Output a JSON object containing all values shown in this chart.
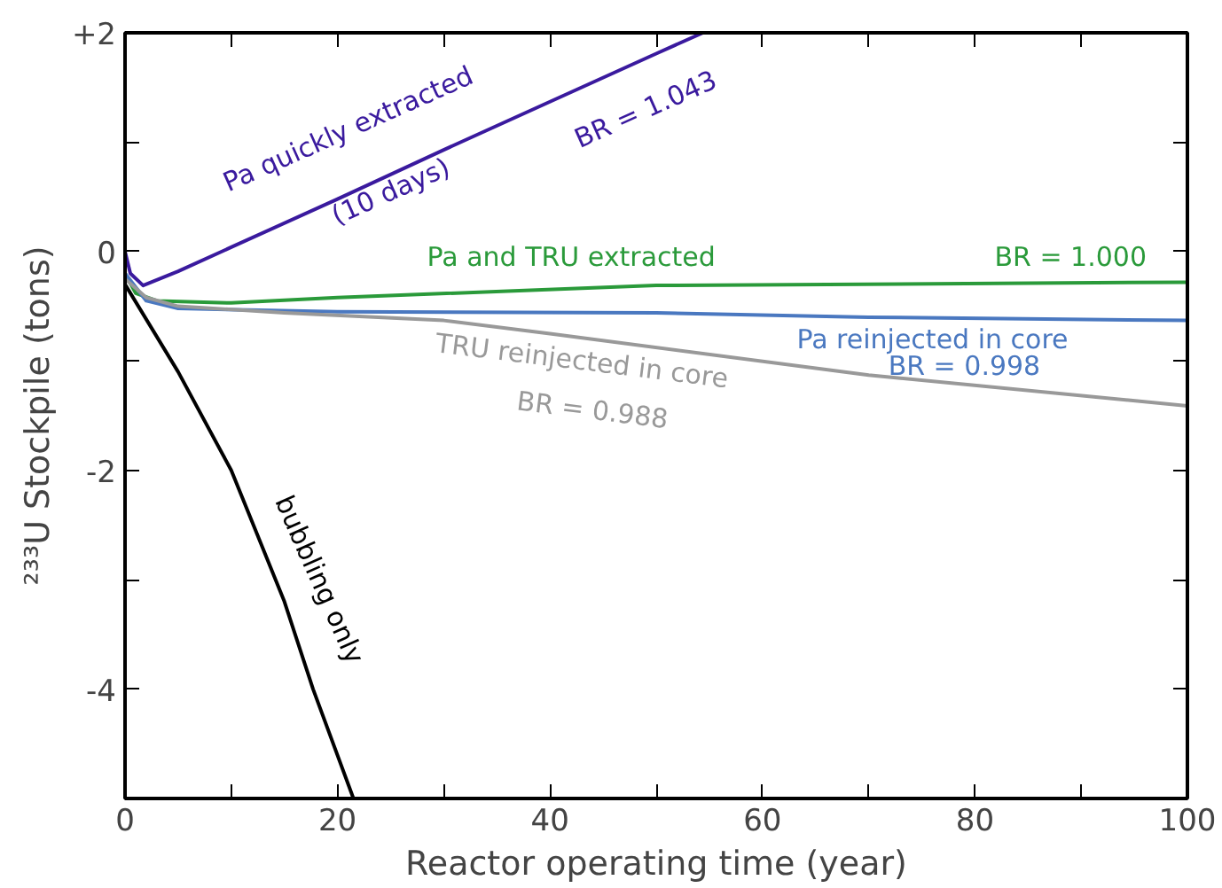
{
  "chart_data": {
    "type": "line",
    "xlabel": "Reactor operating time (year)",
    "ylabel": "²³³U Stockpile (tons)",
    "xlim": [
      0,
      100
    ],
    "ylim": [
      -5,
      2
    ],
    "xticks": [
      0,
      {
        "value": 10,
        "label": null
      },
      20,
      {
        "value": 30,
        "label": null
      },
      40,
      {
        "value": 50,
        "label": null
      },
      60,
      {
        "value": 70,
        "label": null
      },
      80,
      {
        "value": 90,
        "label": null
      },
      100
    ],
    "yticks": [
      {
        "value": -5,
        "label": null
      },
      -4,
      {
        "value": -3,
        "label": null
      },
      -2,
      {
        "value": -1,
        "label": null
      },
      0,
      {
        "value": 1,
        "label": null
      },
      {
        "value": 2,
        "label": "+2"
      }
    ],
    "grid": false,
    "line_style": "solid",
    "marker": "none",
    "series": [
      {
        "color": "#3a1a9e",
        "x": [
          0,
          0.5,
          1.7,
          5,
          10,
          20,
          30,
          40,
          50,
          54.4
        ],
        "values": [
          0,
          -0.2,
          -0.31,
          -0.18,
          0.04,
          0.48,
          0.93,
          1.37,
          1.81,
          2.0
        ]
      },
      {
        "color": "#2a9a3a",
        "x": [
          0,
          1,
          3,
          10,
          20,
          50,
          100
        ],
        "values": [
          -0.2,
          -0.38,
          -0.45,
          -0.47,
          -0.42,
          -0.31,
          -0.28
        ]
      },
      {
        "color": "#4a78c0",
        "x": [
          0,
          2,
          5,
          20,
          50,
          70,
          100
        ],
        "values": [
          -0.2,
          -0.45,
          -0.52,
          -0.55,
          -0.56,
          -0.6,
          -0.63
        ]
      },
      {
        "color": "#999999",
        "x": [
          0,
          2,
          5,
          15,
          30,
          40,
          70,
          100
        ],
        "values": [
          -0.25,
          -0.42,
          -0.5,
          -0.56,
          -0.63,
          -0.75,
          -1.13,
          -1.41
        ]
      },
      {
        "color": "#000000",
        "x": [
          0,
          5,
          10,
          15,
          17.7,
          21.5
        ],
        "values": [
          -0.3,
          -1.1,
          -2.0,
          -3.2,
          -4.0,
          -5.0
        ]
      }
    ],
    "annotations": [
      "Pa quickly extracted",
      "(10 days)",
      "BR = 1.043",
      "Pa and TRU extracted",
      "BR = 1.000",
      "Pa reinjected in core",
      "BR = 0.998",
      "TRU reinjected in core",
      "BR = 0.988",
      "bubbling only"
    ]
  }
}
